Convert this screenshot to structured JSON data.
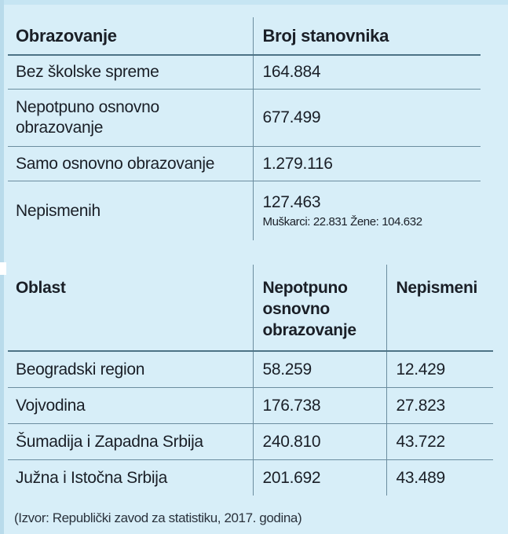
{
  "table1": {
    "headers": [
      "Obrazovanje",
      "Broj stanovnika"
    ],
    "rows": [
      {
        "label": "Bez školske spreme",
        "value": "164.884"
      },
      {
        "label_line1": "Nepotpuno osnovno",
        "label_line2": "obrazovanje",
        "value": "677.499"
      },
      {
        "label": "Samo osnovno obrazovanje",
        "value": "1.279.116"
      },
      {
        "label": "Nepismenih",
        "value": "127.463",
        "detail": "Muškarci: 22.831 Žene: 104.632"
      }
    ]
  },
  "table2": {
    "headers": {
      "col1": "Oblast",
      "col2_line1": "Nepotpuno",
      "col2_line2": "osnovno",
      "col2_line3": "obrazovanje",
      "col3": "Nepismeni"
    },
    "rows": [
      {
        "region": "Beogradski region",
        "incomplete": "58.259",
        "illiterate": "12.429"
      },
      {
        "region": "Vojvodina",
        "incomplete": "176.738",
        "illiterate": "27.823"
      },
      {
        "region": "Šumadija i Zapadna Srbija",
        "incomplete": "240.810",
        "illiterate": "43.722"
      },
      {
        "region": "Južna i Istočna Srbija",
        "incomplete": "201.692",
        "illiterate": "43.489"
      }
    ]
  },
  "source": "(Izvor: Republički zavod za statistiku, 2017. godina)"
}
